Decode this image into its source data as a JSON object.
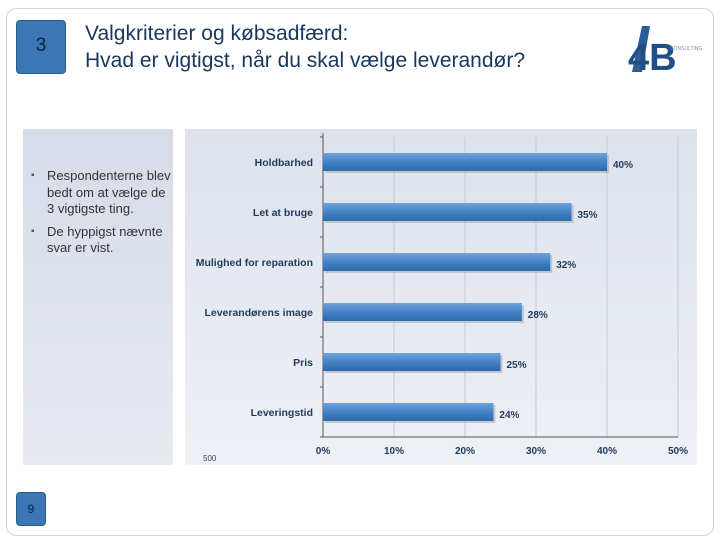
{
  "slide": {
    "number": "3",
    "page_number": "9",
    "title_line1": "Valgkriterier og købsadfærd:",
    "title_line2": "Hvad er vigtigst, når du skal vælge leverandør?",
    "logo_text": "4B",
    "logo_subtext": "CONSULTING",
    "bullets": [
      "Respondenterne blev bedt om at vælge de 3 vigtigste ting.",
      "De hyppigst nævnte svar er vist."
    ],
    "colors": {
      "accent": "#3c76b5",
      "title": "#17375e",
      "bar": "#4a86c8"
    }
  },
  "chart_data": {
    "type": "bar",
    "orientation": "horizontal",
    "categories": [
      "Holdbarhed",
      "Let at bruge",
      "Mulighed for reparation",
      "Leverandørens image",
      "Pris",
      "Leveringstid"
    ],
    "values": [
      40,
      35,
      32,
      28,
      25,
      24
    ],
    "value_labels": [
      "40%",
      "35%",
      "32%",
      "28%",
      "25%",
      "24%"
    ],
    "xlim": [
      0,
      50
    ],
    "xticks": [
      "0%",
      "10%",
      "20%",
      "30%",
      "40%",
      "50%"
    ],
    "footnote": "500",
    "grid": true
  }
}
